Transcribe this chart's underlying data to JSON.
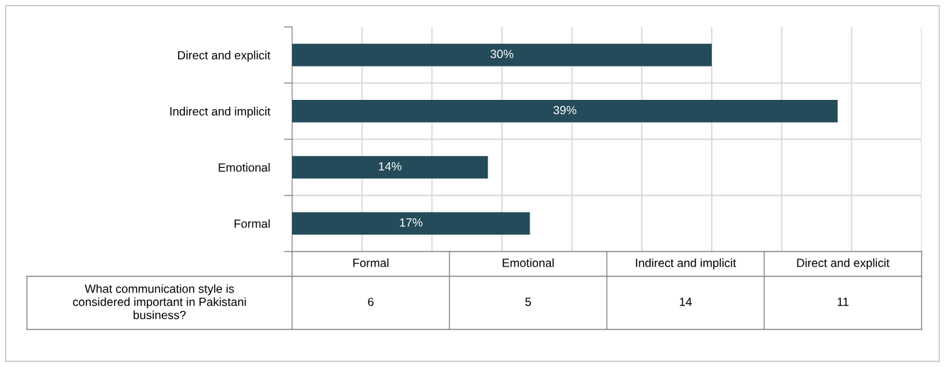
{
  "chart_data": [
    {
      "type": "bar",
      "orientation": "horizontal",
      "categories": [
        "Direct and explicit",
        "Indirect and implicit",
        "Emotional",
        "Formal"
      ],
      "series": [
        {
          "color": "#244b5a",
          "values": [
            30,
            39,
            14,
            17
          ],
          "value_labels": [
            "30%",
            "39%",
            "14%",
            "17%"
          ]
        }
      ],
      "grid": true
    },
    {
      "type": "other",
      "categories": [
        "Formal",
        "Emotional",
        "Indirect and implicit",
        "Direct and explicit"
      ],
      "series": [
        {
          "name": "What communication style is\nconsidered important in Pakistani\nbusiness?",
          "values": [
            6,
            5,
            14,
            11
          ]
        }
      ],
      "data_labels": true
    }
  ]
}
